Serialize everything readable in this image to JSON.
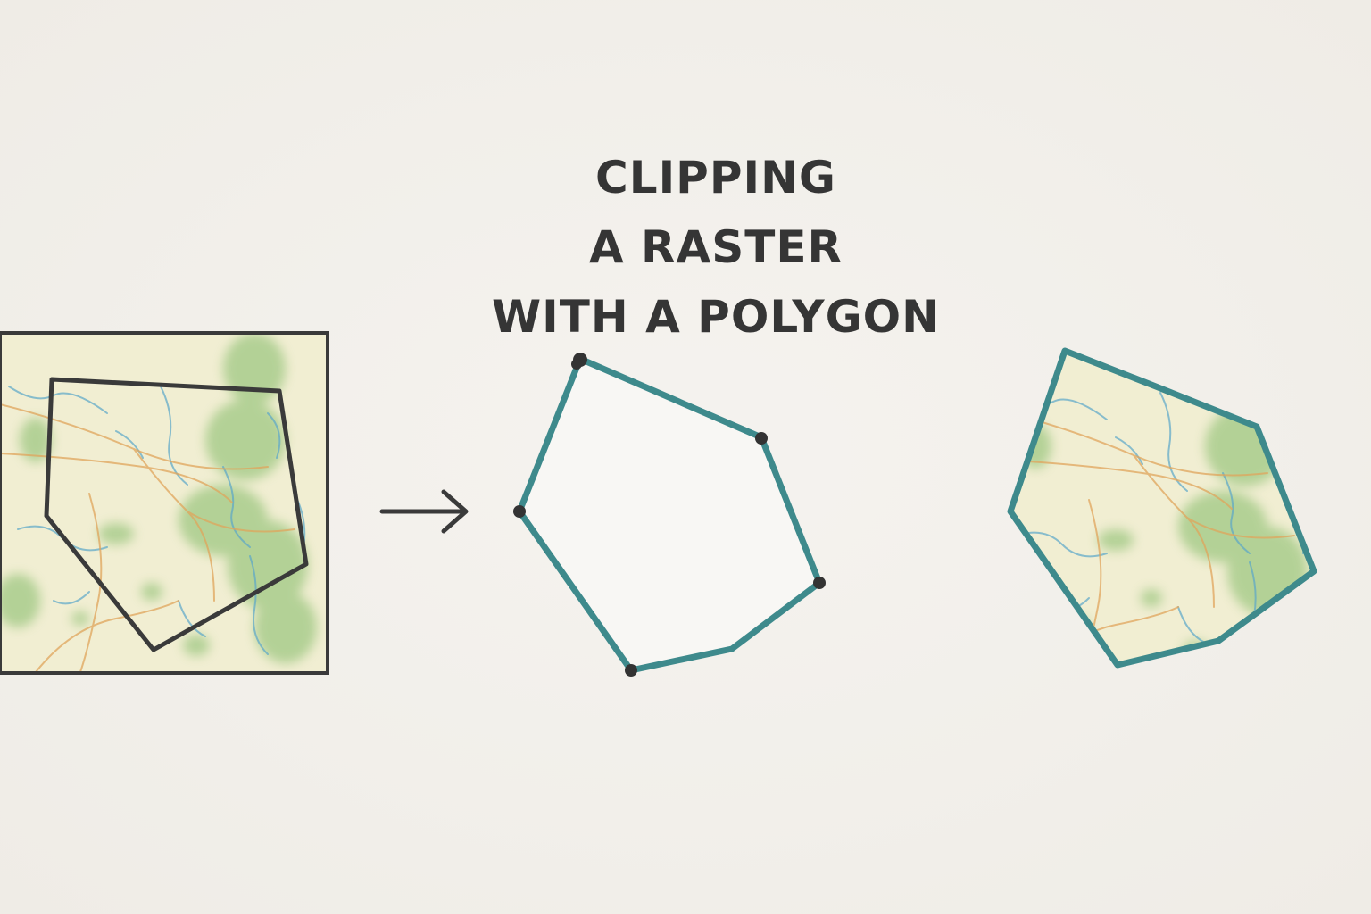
{
  "title": {
    "line1": "CLIPPING",
    "line2": "A RASTER",
    "line3": "WITH A POLYGON"
  },
  "colors": {
    "background": "#f1eee9",
    "raster_base": "#f1eed2",
    "raster_green": "#a9cc8c",
    "raster_water": "#5ba7c9",
    "raster_roads": "#e0a55c",
    "polygon_outline": "#3a3a3a",
    "clip_polygon_stroke": "#3e8a8c",
    "vertex": "#333333",
    "arrow": "#3a3a3a"
  },
  "icons": {
    "arrow": "arrow-right-icon"
  }
}
